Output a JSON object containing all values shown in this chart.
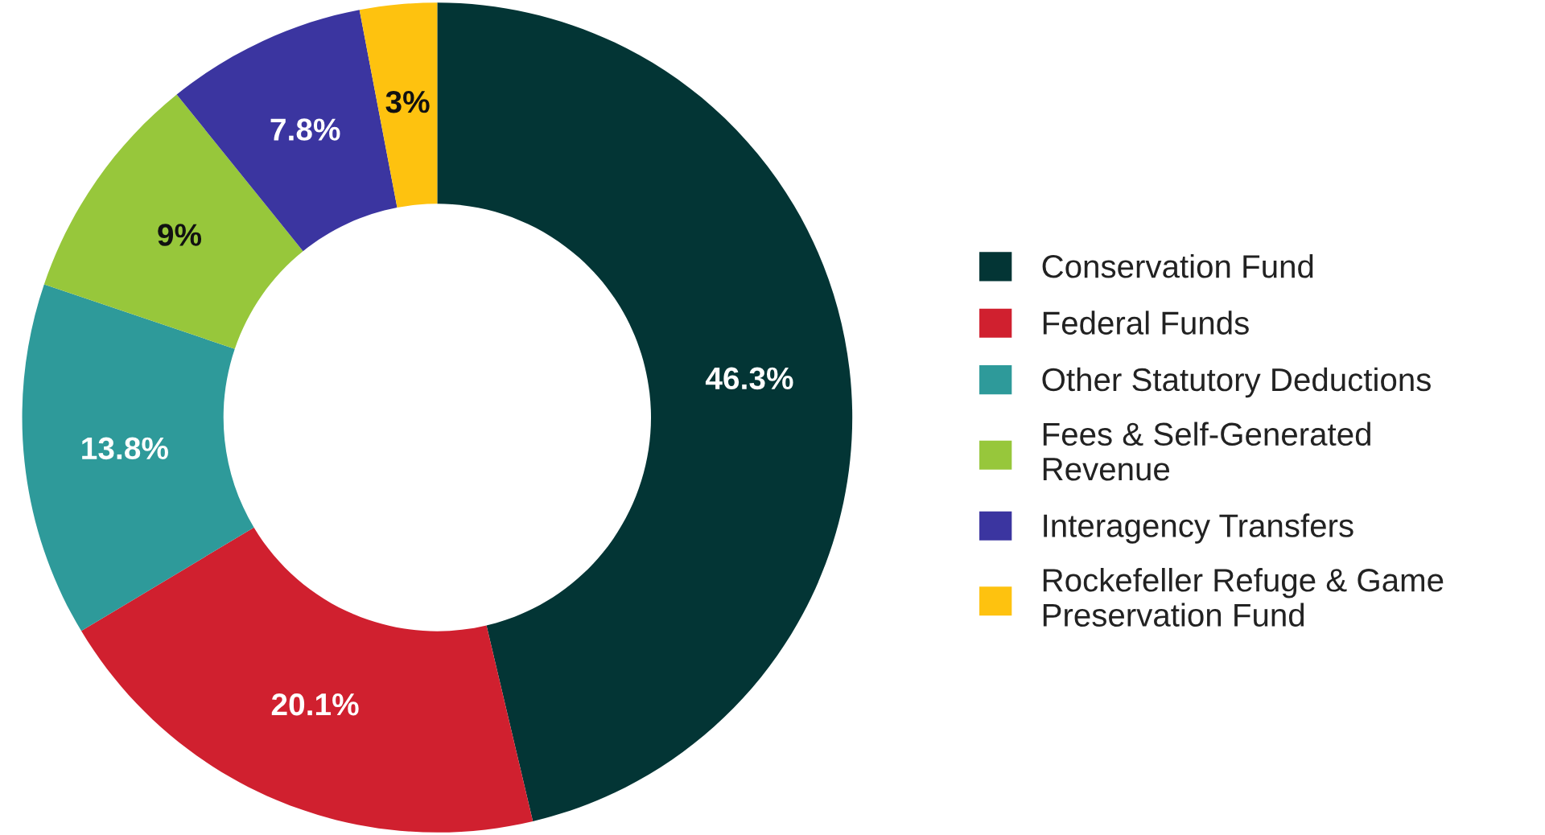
{
  "chart_data": {
    "type": "donut",
    "categories": [
      "Conservation Fund",
      "Federal Funds",
      "Other Statutory Deductions",
      "Fees & Self-Generated Revenue",
      "Interagency Transfers",
      "Rockefeller Refuge & Game Preservation Fund"
    ],
    "values": [
      46.3,
      20.1,
      13.8,
      9,
      7.8,
      3
    ],
    "colors": [
      "#033535",
      "#d0202f",
      "#2e9a9a",
      "#97c73b",
      "#3b35a0",
      "#fec20f"
    ],
    "value_labels": [
      "46.3%",
      "20.1%",
      "13.8%",
      "9%",
      "7.8%",
      "3%"
    ],
    "legend": "right"
  }
}
